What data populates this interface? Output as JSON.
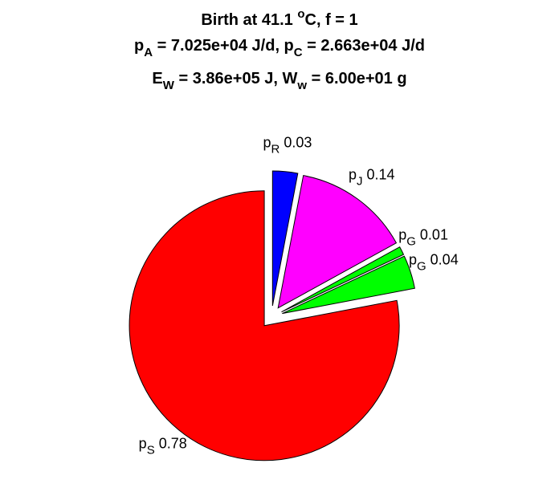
{
  "chart_data": {
    "type": "pie",
    "title_lines": [
      {
        "parts": [
          {
            "t": "Birth at 41.1 "
          },
          {
            "t": "o",
            "s": "sup"
          },
          {
            "t": "C, f = 1"
          }
        ]
      },
      {
        "parts": [
          {
            "t": "p"
          },
          {
            "t": "A",
            "s": "sub"
          },
          {
            "t": " = 7.025e+04 J/d, p"
          },
          {
            "t": "C",
            "s": "sub"
          },
          {
            "t": " = 2.663e+04 J/d"
          }
        ]
      },
      {
        "parts": [
          {
            "t": "E"
          },
          {
            "t": "W",
            "s": "sub"
          },
          {
            "t": " = 3.86e+05 J, W"
          },
          {
            "t": "w",
            "s": "sub"
          },
          {
            "t": " = 6.00e+01 g"
          }
        ]
      }
    ],
    "slices": [
      {
        "symbol": "p",
        "sub": "R",
        "value": 0.03,
        "value_label": "0.03",
        "color": "#0000ff",
        "exploded": true
      },
      {
        "symbol": "p",
        "sub": "J",
        "value": 0.14,
        "value_label": "0.14",
        "color": "#ff00ff",
        "exploded": true
      },
      {
        "symbol": "p",
        "sub": "G",
        "value": 0.01,
        "value_label": "0.01",
        "color": "#00ff00",
        "exploded": true
      },
      {
        "symbol": "p",
        "sub": "G",
        "value": 0.04,
        "value_label": "0.04",
        "color": "#00ff00",
        "exploded": true
      },
      {
        "symbol": "p",
        "sub": "S",
        "value": 0.78,
        "value_label": "0.78",
        "color": "#ff0000",
        "exploded": true
      }
    ],
    "start": "top",
    "direction": "clockwise"
  }
}
